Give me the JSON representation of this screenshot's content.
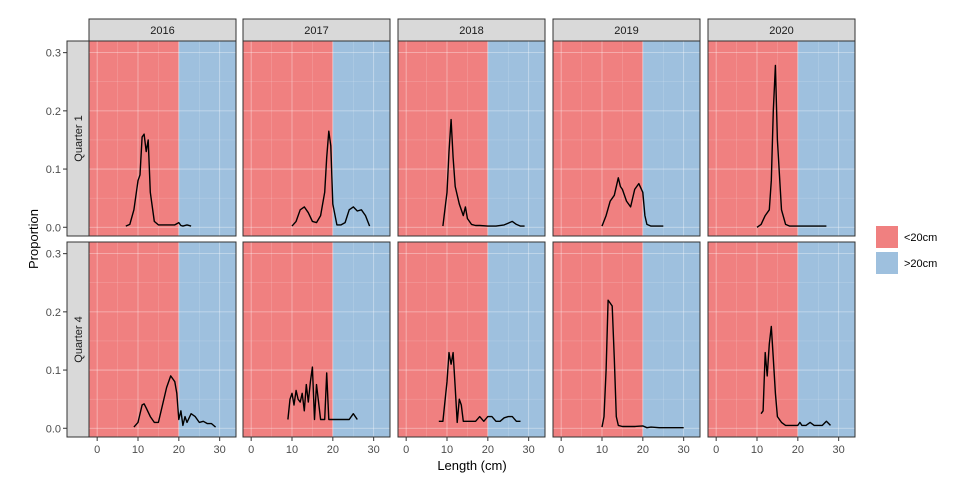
{
  "chart_data": {
    "type": "line",
    "xlabel": "Length (cm)",
    "ylabel": "Proportion",
    "xlim": [
      -2,
      34
    ],
    "ylim": [
      -0.015,
      0.32
    ],
    "x_ticks": [
      0,
      10,
      20,
      30
    ],
    "y_ticks": [
      0.0,
      0.1,
      0.2,
      0.3
    ],
    "x_tick_labels": [
      "0",
      "10",
      "20",
      "30"
    ],
    "y_tick_labels": [
      "0.0",
      "0.1",
      "0.2",
      "0.3"
    ],
    "columns": [
      "2016",
      "2017",
      "2018",
      "2019",
      "2020"
    ],
    "rows": [
      "Quarter 1",
      "Quarter 4"
    ],
    "grid": true,
    "legend_position": "right",
    "legend": [
      {
        "label": "<20cm",
        "color": "#f08080"
      },
      {
        "label": ">20cm",
        "color": "#9ec0de"
      }
    ],
    "threshold": 20,
    "colors": {
      "below": "#f08080",
      "above": "#9ec0de",
      "line": "#000000",
      "strip": "#d9d9d9"
    },
    "panels": [
      {
        "row": 0,
        "col": 0,
        "x": [
          7,
          8,
          9,
          10,
          10.5,
          11,
          11.5,
          12,
          12.5,
          13,
          14,
          15,
          18,
          19,
          20,
          20.5,
          21,
          22,
          23
        ],
        "y": [
          0.002,
          0.005,
          0.03,
          0.08,
          0.09,
          0.155,
          0.16,
          0.13,
          0.15,
          0.06,
          0.01,
          0.004,
          0.004,
          0.004,
          0.008,
          0.003,
          0.002,
          0.004,
          0.002
        ]
      },
      {
        "row": 0,
        "col": 1,
        "x": [
          10,
          11,
          12,
          13,
          14,
          15,
          16,
          17,
          18,
          18.5,
          19,
          19.5,
          20,
          21,
          22,
          23,
          24,
          25,
          26,
          27,
          28,
          29
        ],
        "y": [
          0.002,
          0.01,
          0.03,
          0.035,
          0.025,
          0.01,
          0.008,
          0.02,
          0.06,
          0.12,
          0.165,
          0.14,
          0.04,
          0.004,
          0.004,
          0.008,
          0.03,
          0.035,
          0.028,
          0.03,
          0.02,
          0.002
        ]
      },
      {
        "row": 0,
        "col": 2,
        "x": [
          9,
          10,
          10.5,
          11,
          11.5,
          12,
          13,
          14,
          14.5,
          15,
          16,
          17,
          18,
          20,
          22,
          24,
          26,
          27,
          28,
          29
        ],
        "y": [
          0.002,
          0.06,
          0.13,
          0.185,
          0.12,
          0.07,
          0.04,
          0.02,
          0.035,
          0.015,
          0.005,
          0.003,
          0.003,
          0.002,
          0.002,
          0.004,
          0.01,
          0.005,
          0.002,
          0.002
        ]
      },
      {
        "row": 0,
        "col": 3,
        "x": [
          10,
          11,
          12,
          13,
          14,
          14.5,
          15,
          16,
          17,
          18,
          19,
          20,
          20.5,
          21,
          22,
          23,
          24,
          25
        ],
        "y": [
          0.002,
          0.02,
          0.045,
          0.055,
          0.085,
          0.07,
          0.065,
          0.045,
          0.035,
          0.065,
          0.075,
          0.06,
          0.02,
          0.005,
          0.002,
          0.002,
          0.002,
          0.002
        ]
      },
      {
        "row": 0,
        "col": 4,
        "x": [
          10,
          11,
          12,
          13,
          13.5,
          14,
          14.5,
          15,
          16,
          17,
          18,
          20,
          22,
          24,
          26,
          27
        ],
        "y": [
          0.0,
          0.005,
          0.02,
          0.03,
          0.08,
          0.2,
          0.278,
          0.15,
          0.03,
          0.005,
          0.002,
          0.002,
          0.002,
          0.002,
          0.002,
          0.002
        ]
      },
      {
        "row": 1,
        "col": 0,
        "x": [
          9,
          10,
          11,
          11.5,
          12,
          13,
          14,
          15,
          16,
          17,
          18,
          19,
          19.5,
          20,
          20.5,
          21,
          21.5,
          22,
          23,
          24,
          25,
          26,
          27,
          28,
          29
        ],
        "y": [
          0.002,
          0.01,
          0.04,
          0.042,
          0.035,
          0.02,
          0.01,
          0.01,
          0.04,
          0.07,
          0.09,
          0.08,
          0.06,
          0.015,
          0.03,
          0.005,
          0.02,
          0.01,
          0.025,
          0.02,
          0.01,
          0.012,
          0.008,
          0.008,
          0.002
        ]
      },
      {
        "row": 1,
        "col": 1,
        "x": [
          9,
          9.5,
          10,
          10.5,
          11,
          11.5,
          12,
          12.5,
          13,
          13.5,
          14,
          14.5,
          15,
          15.5,
          16,
          17,
          18,
          18.5,
          19,
          19.5,
          20,
          21,
          22,
          23,
          24,
          25,
          26
        ],
        "y": [
          0.015,
          0.05,
          0.06,
          0.04,
          0.065,
          0.05,
          0.045,
          0.06,
          0.03,
          0.075,
          0.045,
          0.08,
          0.105,
          0.015,
          0.075,
          0.015,
          0.015,
          0.095,
          0.015,
          0.015,
          0.015,
          0.015,
          0.015,
          0.015,
          0.015,
          0.025,
          0.015
        ]
      },
      {
        "row": 1,
        "col": 2,
        "x": [
          8,
          9,
          10,
          10.5,
          11,
          11.5,
          12,
          12.5,
          13,
          13.5,
          14,
          15,
          16,
          17,
          18,
          19,
          20,
          21,
          22,
          23,
          24,
          25,
          26,
          27,
          28
        ],
        "y": [
          0.012,
          0.012,
          0.08,
          0.13,
          0.11,
          0.13,
          0.07,
          0.01,
          0.05,
          0.04,
          0.012,
          0.012,
          0.012,
          0.012,
          0.02,
          0.012,
          0.02,
          0.02,
          0.012,
          0.012,
          0.018,
          0.02,
          0.02,
          0.012,
          0.012
        ]
      },
      {
        "row": 1,
        "col": 3,
        "x": [
          10,
          10.5,
          11,
          11.5,
          12,
          12.5,
          13,
          13.5,
          14,
          15,
          16,
          18,
          20,
          21,
          22,
          24,
          26,
          28,
          30
        ],
        "y": [
          0.002,
          0.02,
          0.1,
          0.22,
          0.215,
          0.21,
          0.12,
          0.02,
          0.005,
          0.003,
          0.003,
          0.003,
          0.004,
          0.001,
          0.002,
          0.001,
          0.001,
          0.001,
          0.001
        ]
      },
      {
        "row": 1,
        "col": 4,
        "x": [
          11,
          11.5,
          12,
          12.5,
          13,
          13.5,
          14,
          14.5,
          15,
          16,
          17,
          18,
          19,
          20,
          20.5,
          21,
          22,
          23,
          24,
          25,
          26,
          27,
          28
        ],
        "y": [
          0.025,
          0.03,
          0.13,
          0.09,
          0.145,
          0.175,
          0.12,
          0.06,
          0.02,
          0.01,
          0.005,
          0.005,
          0.005,
          0.005,
          0.01,
          0.005,
          0.005,
          0.01,
          0.005,
          0.005,
          0.005,
          0.012,
          0.005
        ]
      }
    ]
  }
}
